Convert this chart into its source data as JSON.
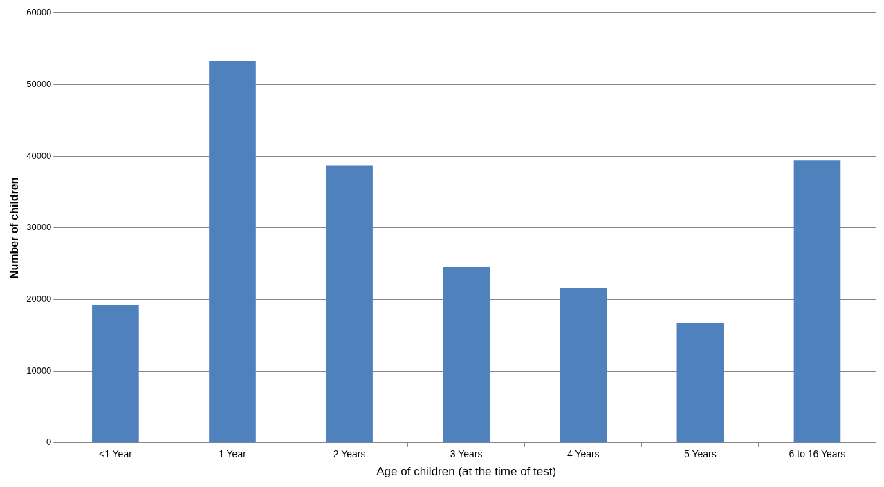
{
  "chart_data": {
    "type": "bar",
    "xlabel": "Age of children (at the time of test)",
    "ylabel": "Number of children",
    "categories": [
      "<1 Year",
      "1 Year",
      "2 Years",
      "3 Years",
      "4 Years",
      "5 Years",
      "6 to 16 Years"
    ],
    "values": [
      19200,
      53300,
      38700,
      24500,
      21600,
      16700,
      39400
    ],
    "color": "#4f81bd",
    "ylim": [
      0,
      60000
    ],
    "yticks": [
      0,
      10000,
      20000,
      30000,
      40000,
      50000,
      60000
    ],
    "grid": "y",
    "legend": false
  }
}
